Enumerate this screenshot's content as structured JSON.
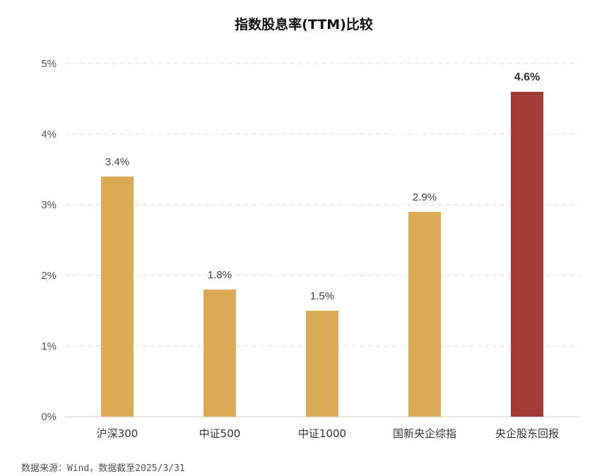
{
  "chart_data": {
    "type": "bar",
    "title": "指数股息率(TTM)比较",
    "categories": [
      "沪深300",
      "中证500",
      "中证1000",
      "国新央企综指",
      "央企股东回报"
    ],
    "values": [
      3.4,
      1.8,
      1.5,
      2.9,
      4.6
    ],
    "value_labels": [
      "3.4%",
      "1.8%",
      "1.5%",
      "2.9%",
      "4.6%"
    ],
    "ylim": [
      0,
      5
    ],
    "y_ticks": [
      0,
      1,
      2,
      3,
      4,
      5
    ],
    "y_tick_labels": [
      "0%",
      "1%",
      "2%",
      "3%",
      "4%",
      "5%"
    ],
    "xlabel": "",
    "ylabel": "",
    "grid": true,
    "legend": "none",
    "colors": {
      "default_bar": "#DBAA55",
      "highlight_bar": "#A23B34"
    },
    "highlight_index": 4
  },
  "source_note": "数据来源：Wind，数据截至2025/3/31"
}
